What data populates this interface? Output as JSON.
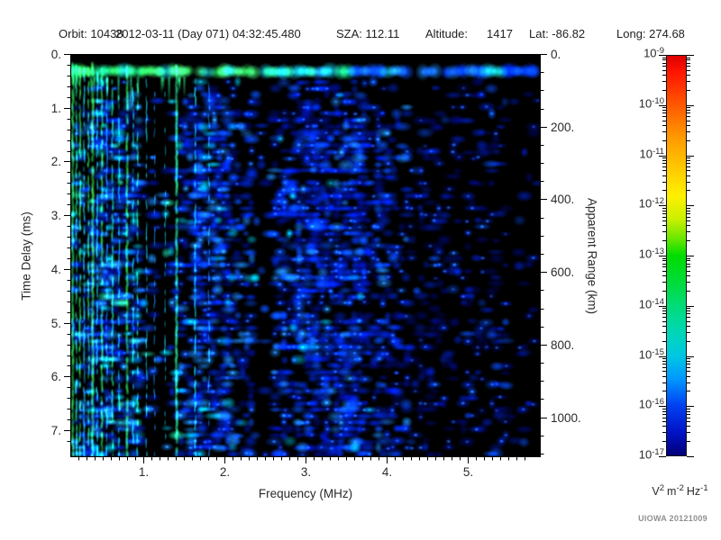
{
  "header": {
    "orbit": "Orbit: 10438",
    "datetime": "2012-03-11 (Day 071) 04:32:45.480",
    "sza": "SZA: 112.11",
    "altitude_label": "Altitude:",
    "altitude_value": "1417",
    "lat": "Lat: -86.82",
    "long": "Long: 274.68"
  },
  "watermark": "UIOWA 20121009",
  "chart_data": {
    "type": "heatmap",
    "subtype": "radar-sounder-ionogram-spectrogram",
    "background": "#000000",
    "x_axis": {
      "label": "Frequency (MHz)",
      "min": 0.1,
      "max": 5.9,
      "major_ticks": [
        1,
        2,
        3,
        4,
        5
      ],
      "major_tick_labels": [
        "1.",
        "2.",
        "3.",
        "4.",
        "5."
      ],
      "minor_tick_step": 0.1
    },
    "y_axis": {
      "label": "Time Delay (ms)",
      "min": 0,
      "max": 7.5,
      "direction": "down",
      "major_ticks": [
        0,
        1,
        2,
        3,
        4,
        5,
        6,
        7
      ],
      "major_tick_labels": [
        "0.",
        "1.",
        "2.",
        "3.",
        "4.",
        "5.",
        "6.",
        "7."
      ],
      "minor_tick_step": 0.2
    },
    "y2_axis": {
      "label": "Apparent Range (km)",
      "min": 0,
      "max": 1110,
      "major_ticks": [
        0,
        200,
        400,
        600,
        800,
        1000
      ],
      "major_tick_labels": [
        "0.",
        "200.",
        "400.",
        "600.",
        "800.",
        "1000."
      ],
      "minor_tick_step": 50
    },
    "colorbar": {
      "scale": "log",
      "top_value": "1e-9",
      "bottom_value": "1e-17",
      "tick_exponents": [
        "-9",
        "-10",
        "-11",
        "-12",
        "-13",
        "-14",
        "-15",
        "-16",
        "-17"
      ],
      "unit_parts": [
        {
          "base": "V",
          "exp": "2"
        },
        {
          "base": "m",
          "exp": "-2"
        },
        {
          "base": "Hz",
          "exp": "-1"
        }
      ],
      "gradient_stops": [
        [
          "#dc0000",
          0
        ],
        [
          "#ff1400",
          4
        ],
        [
          "#ff5a00",
          12.5
        ],
        [
          "#ff9600",
          20
        ],
        [
          "#ffc800",
          28
        ],
        [
          "#fff000",
          35
        ],
        [
          "#c8f000",
          41
        ],
        [
          "#64e600",
          46
        ],
        [
          "#00dc00",
          50
        ],
        [
          "#00dc3c",
          57
        ],
        [
          "#00dc78",
          62.5
        ],
        [
          "#00d7b4",
          69
        ],
        [
          "#00c8e1",
          75
        ],
        [
          "#0096ff",
          81
        ],
        [
          "#0041f0",
          87.5
        ],
        [
          "#0014c8",
          94
        ],
        [
          "#000078",
          100
        ]
      ]
    },
    "features": {
      "transmit_band": {
        "t_top": 0.18,
        "t_bottom": 0.47,
        "tail_count": 16,
        "tail_max_f": 1.55,
        "segments": [
          {
            "f1": 1.0,
            "colors": [
              [
                "#2ee65f",
                3
              ],
              [
                "#19d98c",
                2
              ],
              [
                "#18c8e6",
                1
              ]
            ]
          },
          {
            "f1": 2.37,
            "colors": [
              [
                "#2ee65f",
                3
              ],
              [
                "#40e87a",
                2
              ],
              [
                "#18c8e6",
                1.2
              ]
            ]
          },
          {
            "f1": 2.47,
            "colors": [
              [
                "#c8e632",
                2
              ],
              [
                "#8ce63c",
                2
              ]
            ]
          },
          {
            "f1": 3.1,
            "colors": [
              [
                "#2ee65f",
                1.5
              ],
              [
                "#18c8e6",
                2
              ],
              [
                "#1e8cff",
                1
              ]
            ]
          },
          {
            "f1": 3.55,
            "colors": [
              [
                "#19d98c",
                2
              ],
              [
                "#18c8e6",
                2
              ],
              [
                "#1e8cff",
                1
              ]
            ]
          },
          {
            "f1": 4.4,
            "colors": [
              [
                "#1e8cff",
                2
              ],
              [
                "#0a50ff",
                2
              ],
              [
                "#18c8e6",
                0.6
              ]
            ]
          },
          {
            "f1": 5.2,
            "colors": [
              [
                "#0a50ff",
                2
              ],
              [
                "#1e8cff",
                1.5
              ],
              [
                "#0028dc",
                1
              ]
            ]
          },
          {
            "f1": 5.45,
            "colors": [
              [
                "#19d98c",
                1.5
              ],
              [
                "#18c8e6",
                1.5
              ]
            ]
          },
          {
            "f1": 5.9,
            "colors": [
              [
                "#0a50ff",
                2
              ],
              [
                "#0028dc",
                1.5
              ]
            ]
          }
        ]
      },
      "stripes": [
        {
          "f": 0.13,
          "w": 2.2,
          "color": "#2ce65a",
          "gap": 0.04,
          "t0": 0.2
        },
        {
          "f": 0.175,
          "w": 1.7,
          "color": "#19d98c",
          "gap": 0.18,
          "t0": 0.25
        },
        {
          "f": 0.22,
          "w": 1.7,
          "color": "#2ce65a",
          "gap": 0.22,
          "t0": 0.3
        },
        {
          "f": 0.27,
          "w": 1.7,
          "color": "#18c8e6",
          "gap": 0.28,
          "t0": 0.3
        },
        {
          "f": 0.325,
          "w": 1.6,
          "color": "#2ce65a",
          "gap": 0.3,
          "t0": 0.3
        },
        {
          "f": 0.375,
          "w": 2.4,
          "color": "#3cf05a",
          "gap": 0.03,
          "t0": 0.2
        },
        {
          "f": 0.43,
          "w": 1.6,
          "color": "#18c8e6",
          "gap": 0.3,
          "t0": 0.3
        },
        {
          "f": 0.49,
          "w": 2.0,
          "color": "#2ce65a",
          "gap": 0.2,
          "t0": 0.3
        },
        {
          "f": 0.55,
          "w": 1.5,
          "color": "#2090ff",
          "gap": 0.38,
          "t0": 0.4
        },
        {
          "f": 0.62,
          "w": 1.8,
          "color": "#19d98c",
          "gap": 0.3,
          "t0": 0.35
        },
        {
          "f": 0.7,
          "w": 1.5,
          "color": "#18c8e6",
          "gap": 0.38,
          "t0": 0.4
        },
        {
          "f": 0.8,
          "w": 2.2,
          "color": "#2ee65f",
          "gap": 0.07,
          "t0": 0.25
        },
        {
          "f": 0.875,
          "w": 1.4,
          "color": "#18c8e6",
          "gap": 0.45,
          "t0": 0.5
        },
        {
          "f": 0.93,
          "w": 1.5,
          "color": "#19d98c",
          "gap": 0.42,
          "t0": 0.5
        },
        {
          "f": 1.04,
          "w": 1.3,
          "color": "#18c8e6",
          "gap": 0.55,
          "t0": 0.5
        },
        {
          "f": 1.14,
          "w": 1.3,
          "color": "#2090ff",
          "gap": 0.55,
          "t0": 0.5
        },
        {
          "f": 1.27,
          "w": 1.2,
          "color": "#18c8e6",
          "gap": 0.6,
          "t0": 0.5
        },
        {
          "f": 1.41,
          "w": 2.4,
          "color": "#2af2a0",
          "gap": 0.05,
          "t0": 0.25
        },
        {
          "f": 1.64,
          "w": 1.6,
          "color": "#18c8e6",
          "gap": 0.45,
          "t0": 0.5
        },
        {
          "f": 1.81,
          "w": 1.4,
          "color": "#2090ff",
          "gap": 0.5,
          "t0": 0.5
        }
      ],
      "speckle": {
        "seed": 20121009,
        "start_delay_ms": 0.52,
        "grid": {
          "cols": 100,
          "rows": 64
        },
        "freq_bands": [
          {
            "f1": 0.45,
            "d": 0.5
          },
          {
            "f1": 0.95,
            "d": 0.46
          },
          {
            "f1": 1.42,
            "d": 0.2
          },
          {
            "f1": 2.37,
            "d": 0.58
          },
          {
            "f1": 2.6,
            "d": 0.07
          },
          {
            "f1": 3.8,
            "d": 0.55
          },
          {
            "f1": 4.3,
            "d": 0.42
          },
          {
            "f1": 5.0,
            "d": 0.3
          },
          {
            "f1": 5.5,
            "d": 0.2
          },
          {
            "f1": 5.9,
            "d": 0.1
          }
        ],
        "palettes": [
          {
            "f1": 1.45,
            "colors": [
              [
                "#000f96",
                2
              ],
              [
                "#0028dc",
                3
              ],
              [
                "#0a50ff",
                2
              ],
              [
                "#1e8cff",
                2
              ],
              [
                "#00c8f0",
                1.4
              ],
              [
                "#28e6b4",
                0.5
              ]
            ]
          },
          {
            "f1": 2.4,
            "colors": [
              [
                "#000f96",
                3
              ],
              [
                "#0028dc",
                3
              ],
              [
                "#0a50ff",
                2
              ],
              [
                "#1e8cff",
                1.5
              ],
              [
                "#00c8f0",
                0.8
              ]
            ]
          },
          {
            "f1": 4.3,
            "colors": [
              [
                "#000f96",
                4
              ],
              [
                "#0028dc",
                3.5
              ],
              [
                "#0a50ff",
                1.6
              ],
              [
                "#1e8cff",
                0.6
              ],
              [
                "#00c8f0",
                0.15
              ]
            ]
          },
          {
            "f1": 5.9,
            "colors": [
              [
                "#000a78",
                5
              ],
              [
                "#0020c8",
                3
              ],
              [
                "#0a50ff",
                0.8
              ]
            ]
          }
        ]
      }
    }
  }
}
